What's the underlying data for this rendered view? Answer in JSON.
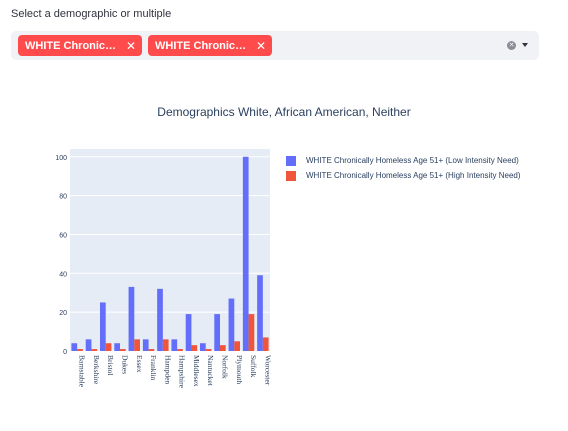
{
  "filter": {
    "label": "Select a demographic or multiple",
    "tags": [
      {
        "label": "WHITE Chronically Homeless Age 51+ (Low Intensity Need)",
        "display": "WHITE Chronical..."
      },
      {
        "label": "WHITE Chronically Homeless Age 51+ (High Intensity Need)",
        "display": "WHITE Chronical..."
      }
    ],
    "close_glyph": "✕",
    "clear_glyph": "✕"
  },
  "colors": {
    "accent": "#ff4b4b",
    "series_low": "#636efa",
    "series_high": "#ef553b",
    "plot_bg": "#e5ecf6"
  },
  "chart_data": {
    "type": "bar",
    "title": "Demographics White, African American, Neither",
    "xlabel": "",
    "ylabel": "",
    "ylim": [
      0,
      104
    ],
    "yticks": [
      0,
      20,
      40,
      60,
      80,
      100
    ],
    "grid": true,
    "legend_placement": "top-right",
    "categories": [
      "Barnstable",
      "Berkshire",
      "Bristol",
      "Dukes",
      "Essex",
      "Franklin",
      "Hampden",
      "Hampshire",
      "Middlesex",
      "Nantucket",
      "Norfolk",
      "Plymouth",
      "Suffolk",
      "Worcester"
    ],
    "series": [
      {
        "name": "WHITE Chronically Homeless Age 51+ (Low Intensity Need)",
        "values": [
          4,
          6,
          25,
          4,
          33,
          6,
          32,
          6,
          19,
          4,
          19,
          27,
          100,
          39
        ]
      },
      {
        "name": "WHITE Chronically Homeless Age 51+ (High Intensity Need)",
        "values": [
          1,
          1,
          4,
          1,
          6,
          1,
          6,
          1,
          3,
          1,
          3,
          5,
          19,
          7
        ]
      }
    ]
  }
}
